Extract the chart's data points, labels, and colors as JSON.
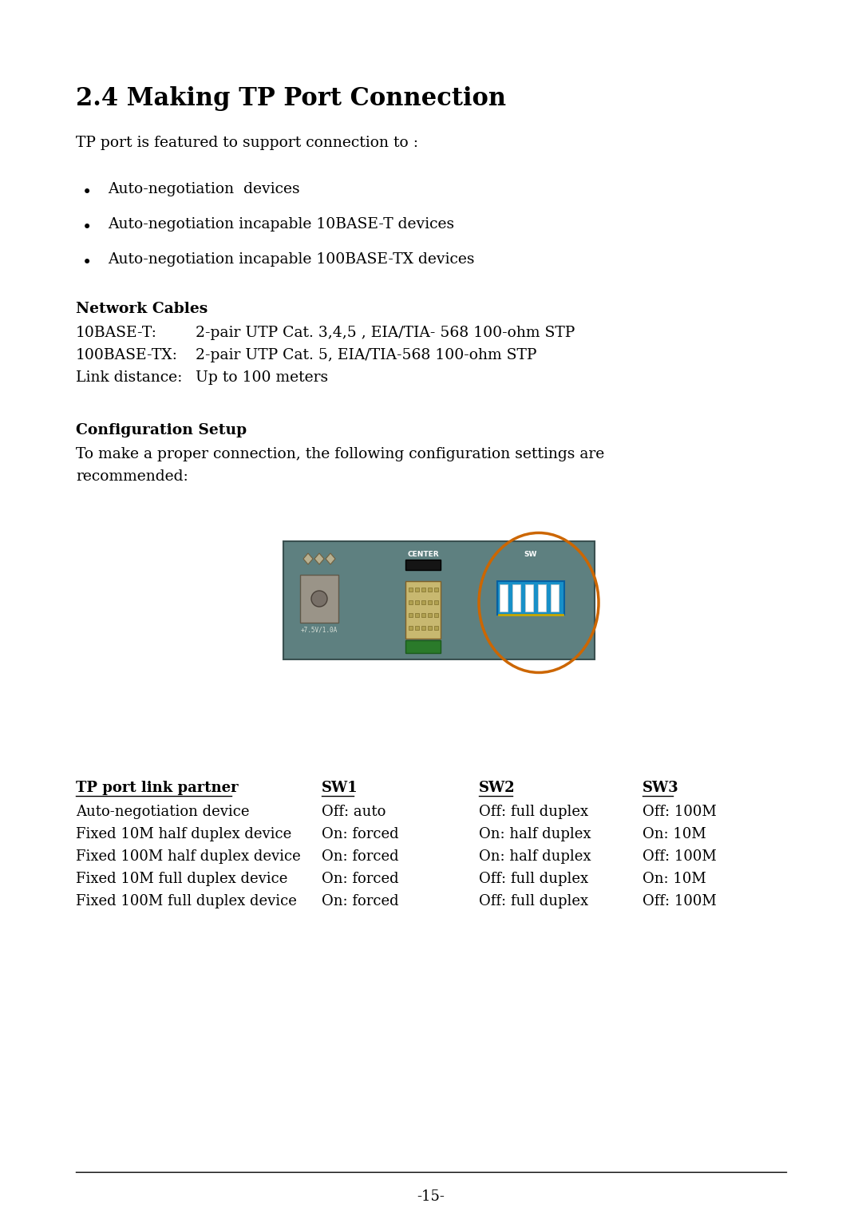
{
  "title": "2.4 Making TP Port Connection",
  "intro": "TP port is featured to support connection to :",
  "bullets": [
    "Auto-negotiation  devices",
    "Auto-negotiation incapable 10BASE-T devices",
    "Auto-negotiation incapable 100BASE-TX devices"
  ],
  "network_cables_title": "Network Cables",
  "network_cables": [
    [
      "10BASE-T:",
      "2-pair UTP Cat. 3,4,5 , EIA/TIA- 568 100-ohm STP"
    ],
    [
      "100BASE-TX:",
      "2-pair UTP Cat. 5, EIA/TIA-568 100-ohm STP"
    ],
    [
      "Link distance:",
      "Up to 100 meters"
    ]
  ],
  "config_title": "Configuration Setup",
  "config_intro_line1": "To make a proper connection, the following configuration settings are",
  "config_intro_line2": "recommended:",
  "table_header": [
    "TP port link partner",
    "SW1",
    "SW2",
    "SW3"
  ],
  "table_rows": [
    [
      "Auto-negotiation device",
      "Off: auto",
      "Off: full duplex",
      "Off: 100M"
    ],
    [
      "Fixed 10M half duplex device",
      "On: forced",
      "On: half duplex",
      "On: 10M"
    ],
    [
      "Fixed 100M half duplex device",
      "On: forced",
      "On: half duplex",
      "Off: 100M"
    ],
    [
      "Fixed 10M full duplex device",
      "On: forced",
      "Off: full duplex",
      "On: 10M"
    ],
    [
      "Fixed 100M full duplex device",
      "On: forced",
      "Off: full duplex",
      "Off: 100M"
    ]
  ],
  "footer": "-15-",
  "bg_color": "#ffffff",
  "text_color": "#000000",
  "board_bg": "#5e8080",
  "board_border": "#3a5050"
}
